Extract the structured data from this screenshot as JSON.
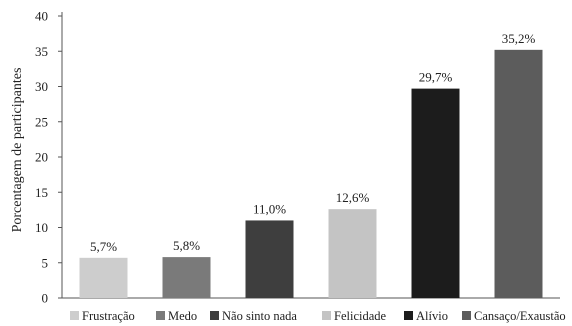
{
  "chart_data": {
    "type": "bar",
    "categories": [
      "Frustração",
      "Medo",
      "Não sinto nada",
      "Felicidade",
      "Alívio",
      "Cansaço/Exaustão"
    ],
    "values": [
      5.7,
      5.8,
      11.0,
      12.6,
      29.7,
      35.2
    ],
    "data_labels": [
      "5,7%",
      "5,8%",
      "11,0%",
      "12,6%",
      "29,7%",
      "35,2%"
    ],
    "colors": [
      "#cdcdcd",
      "#7a7a7a",
      "#3e3e3e",
      "#c4c4c4",
      "#1c1c1c",
      "#5c5c5c"
    ],
    "ylabel": "Porcentagem de participantes",
    "ylim": [
      0,
      40
    ],
    "yticks": [
      "0",
      "5",
      "10",
      "15",
      "20",
      "25",
      "30",
      "35",
      "40"
    ],
    "grid": false,
    "legend_position": "bottom"
  }
}
